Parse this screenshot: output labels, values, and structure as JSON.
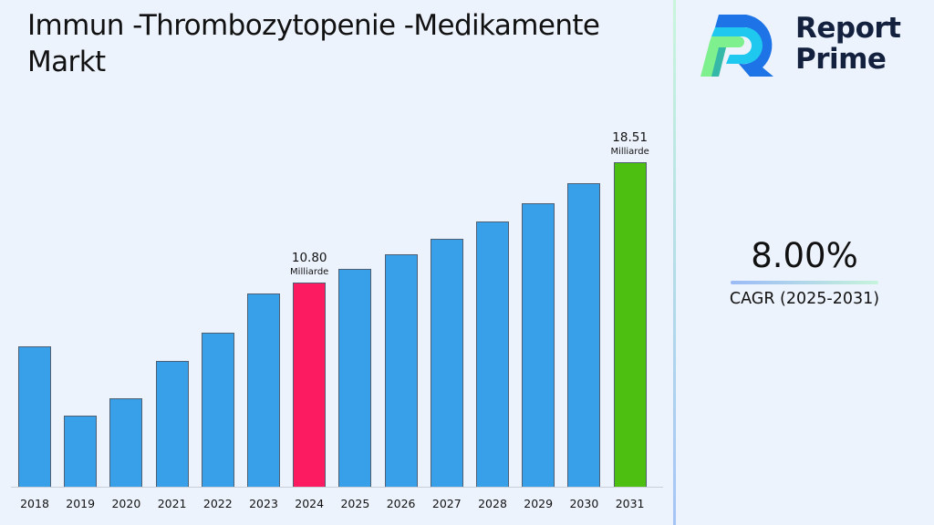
{
  "title": "Immun -Thrombozytopenie -Medikamente Markt",
  "brand": {
    "name_line1": "Report",
    "name_line2": "Prime"
  },
  "cagr": {
    "value": "8.00%",
    "label": "CAGR (2025-2031)"
  },
  "colors": {
    "default_bar": "#38a0e8",
    "highlight_2024": "#fc1a60",
    "highlight_2031": "#4cbf10",
    "background": "#edf3fd"
  },
  "chart_data": {
    "type": "bar",
    "title": "Immun -Thrombozytopenie -Medikamente Markt",
    "xlabel": "",
    "ylabel": "",
    "unit": "Milliarde",
    "grid": false,
    "legend": "none",
    "categories": [
      "2018",
      "2019",
      "2020",
      "2021",
      "2022",
      "2023",
      "2024",
      "2025",
      "2026",
      "2027",
      "2028",
      "2029",
      "2030",
      "2031"
    ],
    "values": [
      6.7,
      2.3,
      3.4,
      5.8,
      7.6,
      10.1,
      10.8,
      11.66,
      12.6,
      13.6,
      14.69,
      15.87,
      17.14,
      18.51
    ],
    "annotations": [
      {
        "category": "2024",
        "value": "10.80",
        "unit": "Milliarde"
      },
      {
        "category": "2031",
        "value": "18.51",
        "unit": "Milliarde"
      }
    ],
    "bar_colors": [
      "#38a0e8",
      "#38a0e8",
      "#38a0e8",
      "#38a0e8",
      "#38a0e8",
      "#38a0e8",
      "#fc1a60",
      "#38a0e8",
      "#38a0e8",
      "#38a0e8",
      "#38a0e8",
      "#38a0e8",
      "#38a0e8",
      "#4cbf10"
    ]
  }
}
